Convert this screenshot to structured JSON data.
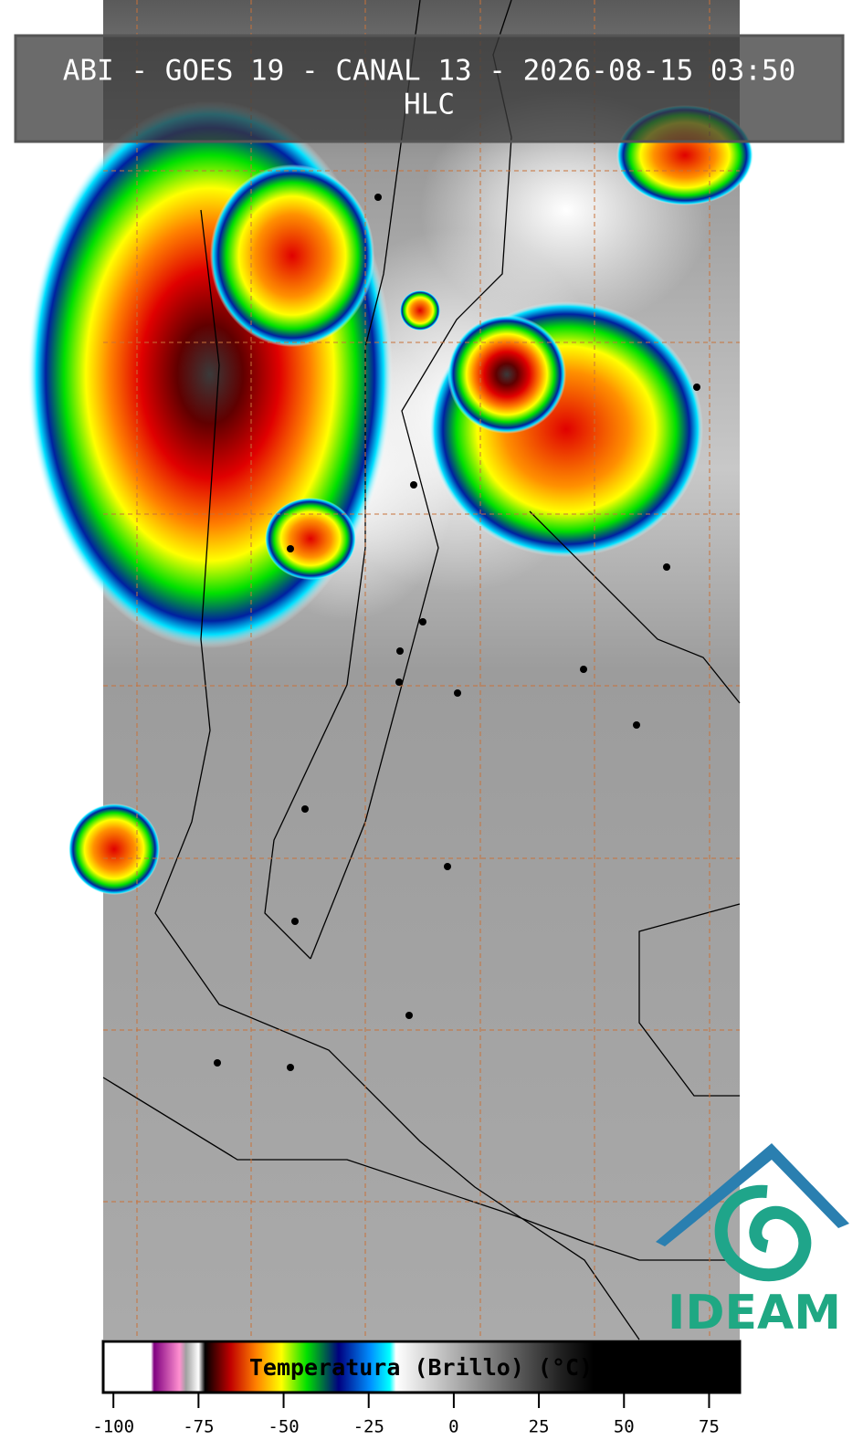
{
  "header": {
    "title": "ABI - GOES 19 - CANAL 13 - 2026-08-15 03:50",
    "subtitle": "HLC"
  },
  "colorbar": {
    "label": "Temperatura (Brillo) (°C)",
    "lim": [
      -103,
      84
    ],
    "ticks": [
      -100,
      -75,
      -50,
      -25,
      0,
      25,
      50,
      75
    ]
  },
  "logo": {
    "text": "IDEAM"
  }
}
